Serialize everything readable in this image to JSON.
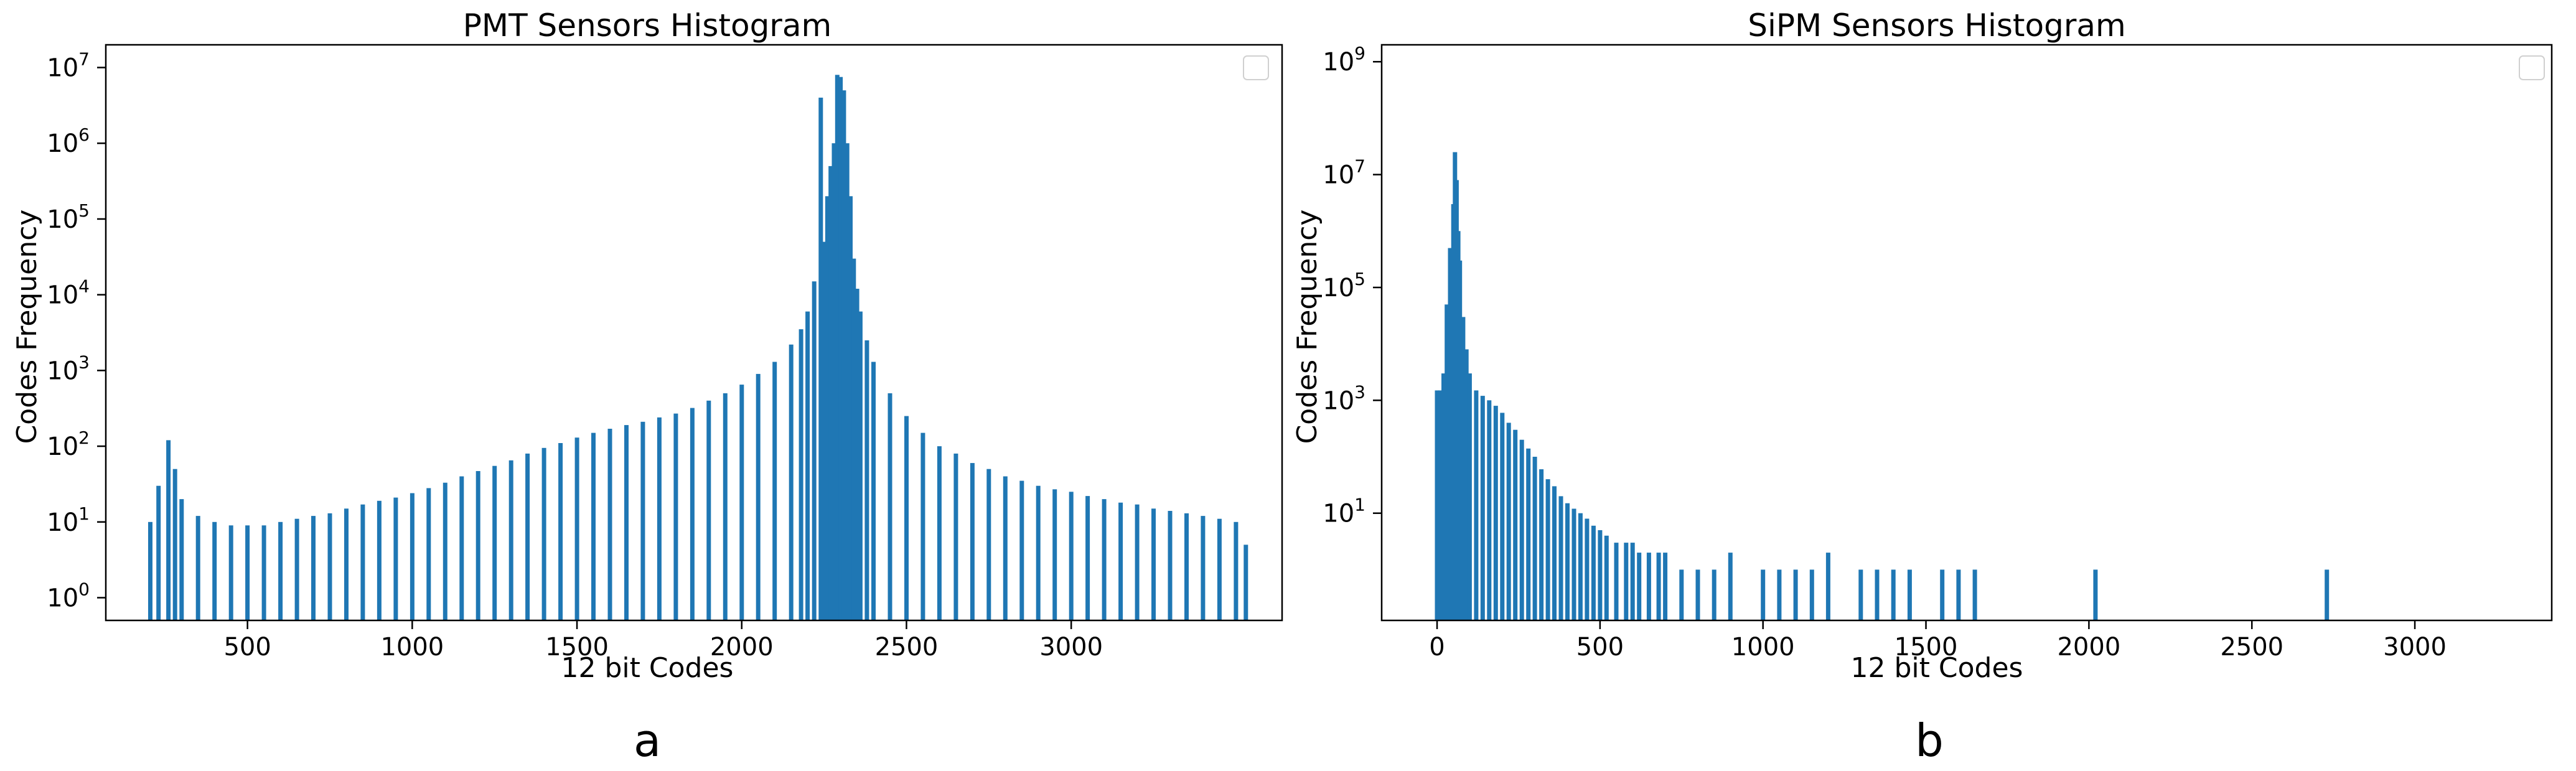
{
  "colors": {
    "bar": "#1f77b4",
    "axis": "#000000",
    "background": "#ffffff"
  },
  "chart_data": [
    {
      "type": "bar",
      "panel_label": "a",
      "title": "PMT Sensors Histogram",
      "xlabel": "12 bit Codes",
      "ylabel": "Codes Frequency",
      "yscale": "log",
      "xlim": [
        70,
        3640
      ],
      "ylim_exp": [
        -0.3,
        7.3
      ],
      "x_ticks": [
        500,
        1000,
        1500,
        2000,
        2500,
        3000
      ],
      "y_ticks": [
        {
          "base": "10",
          "exp": "0",
          "value": 1
        },
        {
          "base": "10",
          "exp": "1",
          "value": 10
        },
        {
          "base": "10",
          "exp": "2",
          "value": 100
        },
        {
          "base": "10",
          "exp": "3",
          "value": 1000
        },
        {
          "base": "10",
          "exp": "4",
          "value": 10000
        },
        {
          "base": "10",
          "exp": "5",
          "value": 100000
        },
        {
          "base": "10",
          "exp": "6",
          "value": 1000000
        },
        {
          "base": "10",
          "exp": "7",
          "value": 10000000
        }
      ],
      "legend": "top-right, empty",
      "grid": false,
      "x": [
        205,
        230,
        260,
        280,
        300,
        350,
        400,
        450,
        500,
        550,
        600,
        650,
        700,
        750,
        800,
        850,
        900,
        950,
        1000,
        1050,
        1100,
        1150,
        1200,
        1250,
        1300,
        1350,
        1400,
        1450,
        1500,
        1550,
        1600,
        1650,
        1700,
        1750,
        1800,
        1850,
        1900,
        1950,
        2000,
        2050,
        2100,
        2150,
        2180,
        2200,
        2220,
        2240,
        2250,
        2260,
        2270,
        2280,
        2290,
        2300,
        2310,
        2320,
        2330,
        2340,
        2350,
        2360,
        2380,
        2400,
        2450,
        2500,
        2550,
        2600,
        2650,
        2700,
        2750,
        2800,
        2850,
        2900,
        2950,
        3000,
        3050,
        3100,
        3150,
        3200,
        3250,
        3300,
        3350,
        3400,
        3450,
        3500,
        3530
      ],
      "y": [
        10,
        30,
        120,
        50,
        20,
        12,
        10,
        9,
        9,
        9,
        10,
        11,
        12,
        13,
        15,
        17,
        19,
        21,
        24,
        28,
        33,
        40,
        47,
        55,
        65,
        80,
        95,
        110,
        130,
        150,
        170,
        190,
        210,
        240,
        270,
        320,
        400,
        500,
        650,
        900,
        1300,
        2200,
        3500,
        6000,
        15000,
        4000000,
        50000,
        200000,
        500000,
        1000000,
        8000000,
        7500000,
        5000000,
        1000000,
        200000,
        30000,
        12000,
        6000,
        2500,
        1300,
        500,
        250,
        150,
        100,
        80,
        60,
        50,
        40,
        35,
        30,
        27,
        25,
        22,
        20,
        18,
        17,
        15,
        14,
        13,
        12,
        11,
        10,
        5
      ]
    },
    {
      "type": "bar",
      "panel_label": "b",
      "title": "SiPM Sensors Histogram",
      "xlabel": "12 bit Codes",
      "ylabel": "Codes Frequency",
      "yscale": "log",
      "xlim": [
        -170,
        3420
      ],
      "ylim_exp": [
        -0.9,
        9.3
      ],
      "x_ticks": [
        0,
        500,
        1000,
        1500,
        2000,
        2500,
        3000
      ],
      "y_ticks": [
        {
          "base": "10",
          "exp": "1",
          "value": 10
        },
        {
          "base": "10",
          "exp": "3",
          "value": 1000
        },
        {
          "base": "10",
          "exp": "5",
          "value": 100000
        },
        {
          "base": "10",
          "exp": "7",
          "value": 10000000
        },
        {
          "base": "10",
          "exp": "9",
          "value": 1000000000
        }
      ],
      "legend": "top-right, empty",
      "grid": false,
      "x": [
        0,
        10,
        20,
        30,
        40,
        50,
        55,
        60,
        65,
        70,
        80,
        90,
        100,
        120,
        140,
        160,
        180,
        200,
        220,
        240,
        260,
        280,
        300,
        320,
        340,
        360,
        380,
        400,
        420,
        440,
        460,
        480,
        500,
        520,
        550,
        580,
        600,
        620,
        650,
        680,
        700,
        750,
        800,
        850,
        900,
        1000,
        1050,
        1100,
        1150,
        1200,
        1300,
        1350,
        1400,
        1450,
        1550,
        1600,
        1650,
        2020,
        2730
      ],
      "y": [
        1500,
        1500,
        3000,
        50000,
        500000,
        3000000,
        25000000,
        8000000,
        1000000,
        300000,
        30000,
        8000,
        3000,
        1500,
        1200,
        1000,
        800,
        600,
        400,
        300,
        200,
        140,
        100,
        60,
        40,
        30,
        20,
        15,
        12,
        10,
        8,
        6,
        5,
        4,
        3,
        3,
        3,
        2,
        2,
        2,
        2,
        1,
        1,
        1,
        2,
        1,
        1,
        1,
        1,
        2,
        1,
        1,
        1,
        1,
        1,
        1,
        1,
        1,
        1
      ]
    }
  ]
}
